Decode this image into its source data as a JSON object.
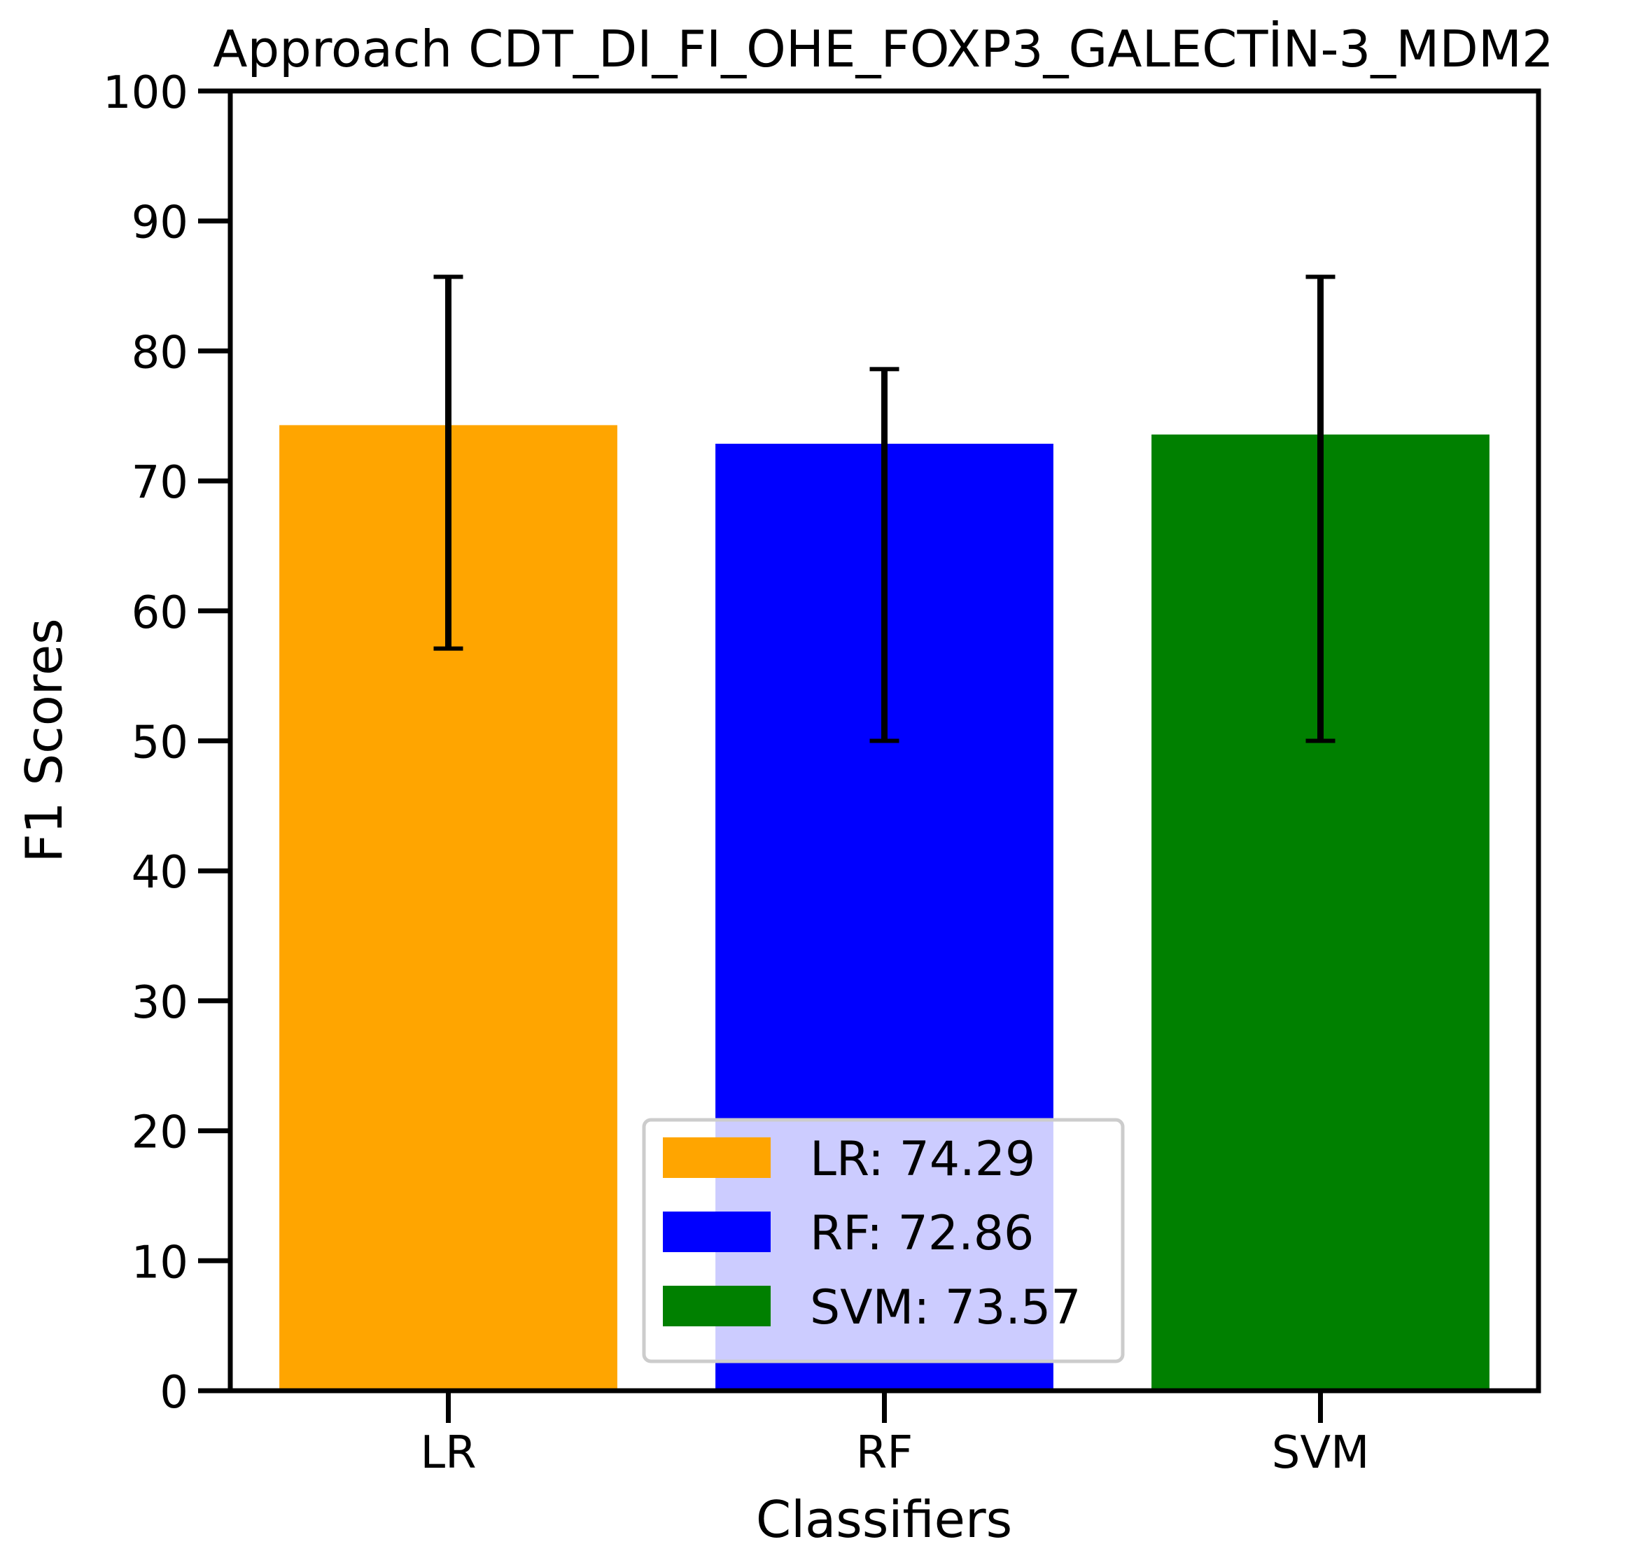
{
  "chart_data": {
    "type": "bar",
    "title": "Approach CDT_DI_FI_OHE_FOXP3_GALECTİN-3_MDM2",
    "xlabel": "Classifiers",
    "ylabel": "F1 Scores",
    "ylim": [
      0,
      100
    ],
    "yticks": [
      "0",
      "10",
      "20",
      "30",
      "40",
      "50",
      "60",
      "70",
      "80",
      "90",
      "100"
    ],
    "categories": [
      "LR",
      "RF",
      "SVM"
    ],
    "values": [
      74.29,
      72.86,
      73.57
    ],
    "error_low": [
      57.1,
      50.0,
      50.0
    ],
    "error_high": [
      85.7,
      78.6,
      85.7
    ],
    "colors": [
      "#ffa500",
      "#0000ff",
      "#008000"
    ],
    "grid": false,
    "legend": {
      "placement": "lower-center",
      "entries": [
        "LR: 74.29",
        "RF: 72.86",
        "SVM: 73.57"
      ]
    }
  }
}
